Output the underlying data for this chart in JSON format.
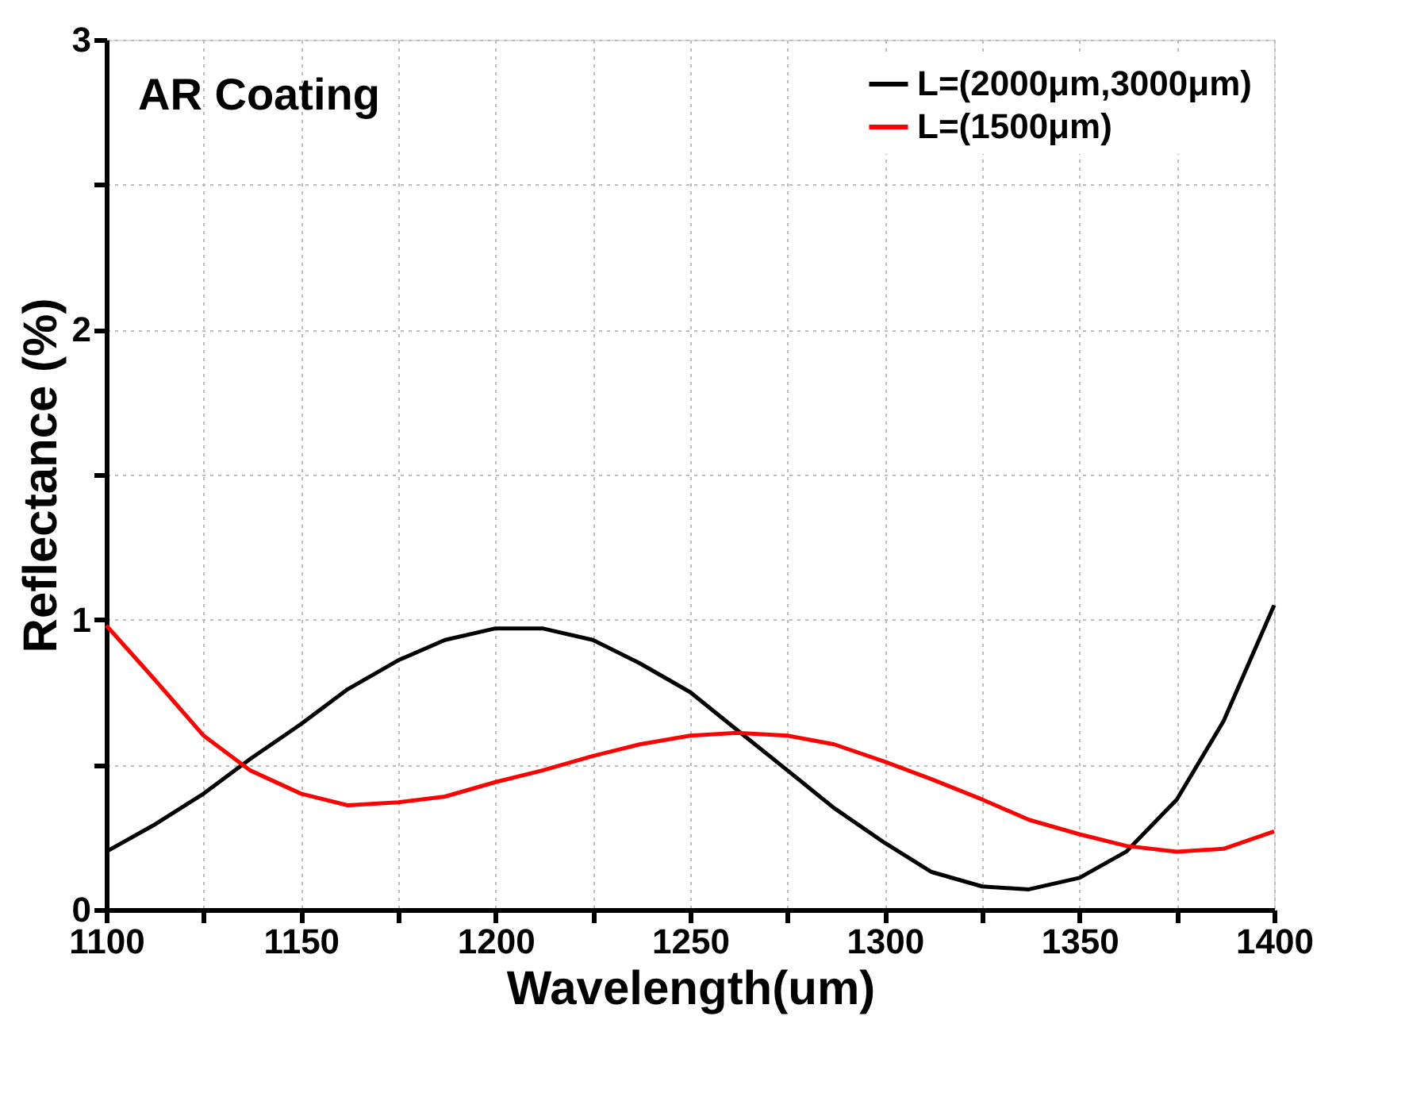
{
  "chart_data": {
    "type": "line",
    "xlabel": "Wavelength(um)",
    "ylabel": "Reflectance (%)",
    "annotations": [
      "AR Coating"
    ],
    "xlim": [
      1100,
      1400
    ],
    "ylim": [
      0,
      3
    ],
    "xticks": [
      1100,
      {
        "value": 1125,
        "label": null
      },
      1150,
      {
        "value": 1175,
        "label": null
      },
      1200,
      {
        "value": 1225,
        "label": null
      },
      1250,
      {
        "value": 1275,
        "label": null
      },
      1300,
      {
        "value": 1325,
        "label": null
      },
      1350,
      {
        "value": 1375,
        "label": null
      },
      1400
    ],
    "yticks": [
      0,
      {
        "value": 0.5,
        "label": null
      },
      1,
      {
        "value": 1.5,
        "label": null
      },
      2,
      {
        "value": 2.5,
        "label": null
      },
      3
    ],
    "grid": true,
    "legend": "top right",
    "line_style": "solid",
    "marker": "none",
    "x": [
      1100,
      1112,
      1125,
      1137,
      1150,
      1162,
      1175,
      1187,
      1200,
      1212,
      1225,
      1237,
      1250,
      1262,
      1275,
      1287,
      1300,
      1312,
      1325,
      1337,
      1350,
      1362,
      1375,
      1387,
      1400
    ],
    "series": [
      {
        "name": "L=(2000μm,3000μm)",
        "color": "#000000",
        "values": [
          0.2,
          0.29,
          0.4,
          0.52,
          0.64,
          0.76,
          0.86,
          0.93,
          0.97,
          0.97,
          0.93,
          0.85,
          0.75,
          0.62,
          0.48,
          0.35,
          0.23,
          0.13,
          0.08,
          0.07,
          0.11,
          0.2,
          0.38,
          0.65,
          1.05
        ]
      },
      {
        "name": "L=(1500μm)",
        "color": "#ff0000",
        "values": [
          0.98,
          0.8,
          0.6,
          0.48,
          0.4,
          0.36,
          0.37,
          0.39,
          0.44,
          0.48,
          0.53,
          0.57,
          0.6,
          0.61,
          0.6,
          0.57,
          0.51,
          0.45,
          0.38,
          0.31,
          0.26,
          0.22,
          0.2,
          0.21,
          0.27
        ]
      }
    ]
  }
}
